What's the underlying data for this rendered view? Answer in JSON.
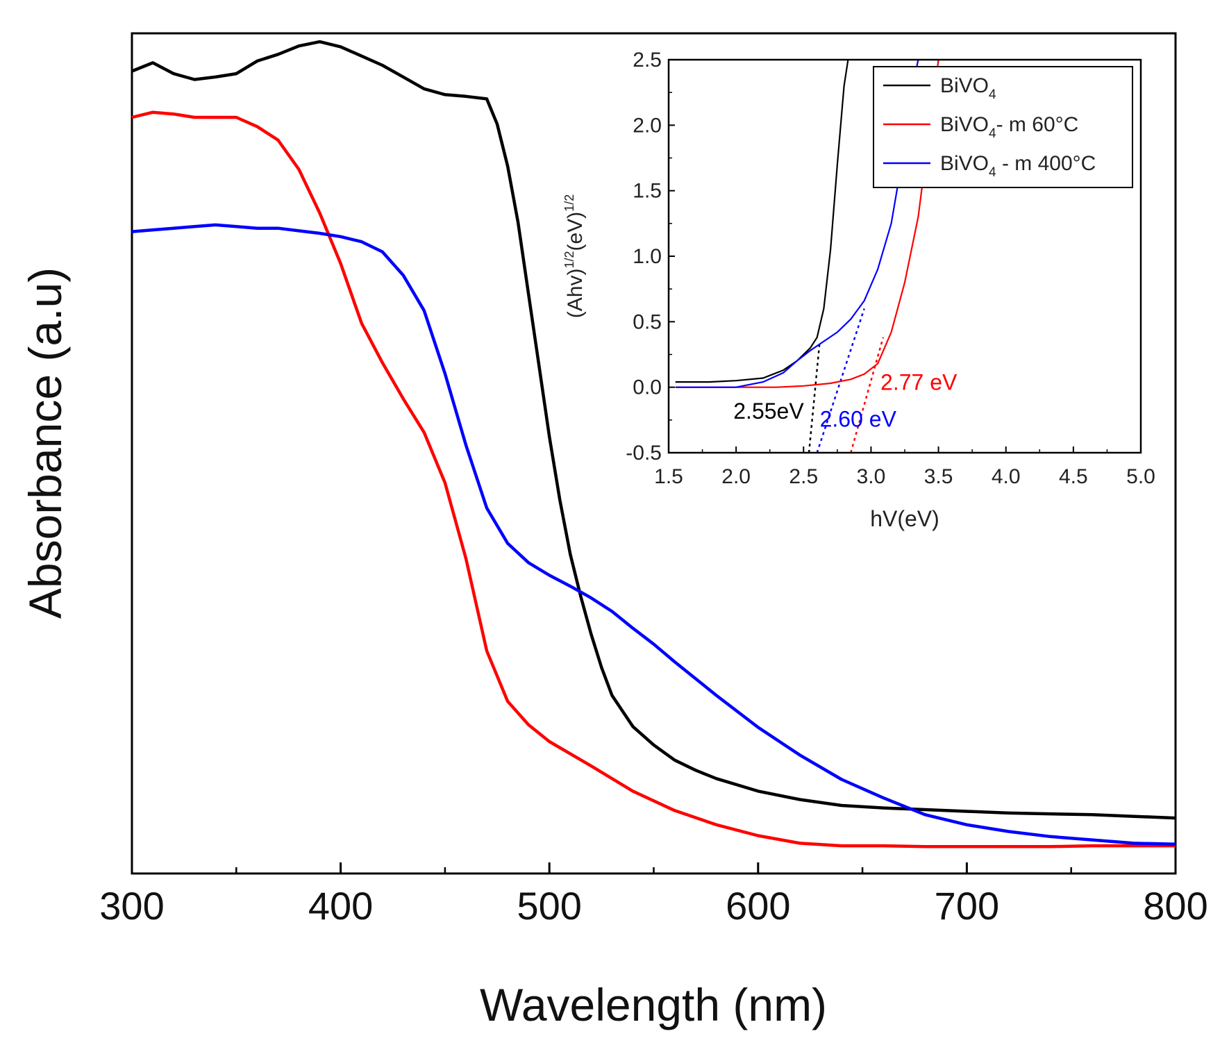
{
  "chart_data": [
    {
      "type": "line",
      "xlabel": "Wavelength (nm)",
      "ylabel": "Absorbance (a.u)",
      "xlim": [
        300,
        800
      ],
      "ylim": [
        0,
        1
      ],
      "xticks": [
        300,
        400,
        500,
        600,
        700,
        800
      ],
      "xtick_labels": [
        "300",
        "400",
        "500",
        "600",
        "700",
        "800"
      ],
      "series": [
        {
          "name": "BiVO4",
          "color": "#000000",
          "x": [
            300,
            310,
            320,
            330,
            340,
            350,
            360,
            370,
            380,
            390,
            400,
            410,
            420,
            430,
            440,
            450,
            460,
            470,
            475,
            480,
            485,
            490,
            495,
            500,
            505,
            510,
            515,
            520,
            525,
            530,
            540,
            550,
            560,
            570,
            580,
            600,
            620,
            640,
            660,
            680,
            700,
            720,
            740,
            760,
            780,
            800
          ],
          "y": [
            0.955,
            0.965,
            0.952,
            0.945,
            0.948,
            0.952,
            0.967,
            0.975,
            0.985,
            0.99,
            0.984,
            0.973,
            0.962,
            0.948,
            0.934,
            0.927,
            0.925,
            0.922,
            0.892,
            0.842,
            0.775,
            0.69,
            0.605,
            0.52,
            0.445,
            0.38,
            0.33,
            0.285,
            0.245,
            0.212,
            0.175,
            0.153,
            0.135,
            0.123,
            0.113,
            0.098,
            0.088,
            0.081,
            0.078,
            0.076,
            0.074,
            0.072,
            0.071,
            0.07,
            0.068,
            0.066
          ]
        },
        {
          "name": "BiVO4- m 60°C",
          "color": "#ff0000",
          "x": [
            300,
            310,
            320,
            330,
            340,
            350,
            360,
            370,
            380,
            390,
            400,
            410,
            420,
            430,
            440,
            450,
            460,
            470,
            480,
            490,
            500,
            520,
            540,
            560,
            580,
            600,
            620,
            640,
            660,
            680,
            700,
            720,
            740,
            760,
            780,
            800
          ],
          "y": [
            0.9,
            0.906,
            0.904,
            0.9,
            0.9,
            0.9,
            0.889,
            0.873,
            0.838,
            0.786,
            0.726,
            0.655,
            0.608,
            0.565,
            0.525,
            0.465,
            0.375,
            0.265,
            0.205,
            0.177,
            0.157,
            0.128,
            0.098,
            0.075,
            0.058,
            0.045,
            0.036,
            0.033,
            0.033,
            0.032,
            0.032,
            0.032,
            0.032,
            0.033,
            0.033,
            0.033
          ]
        },
        {
          "name": "BiVO4 - m 400°C",
          "color": "#0000ff",
          "x": [
            300,
            310,
            320,
            330,
            340,
            350,
            360,
            370,
            380,
            390,
            400,
            410,
            420,
            430,
            440,
            450,
            460,
            470,
            480,
            490,
            500,
            510,
            520,
            530,
            540,
            550,
            560,
            580,
            600,
            620,
            640,
            660,
            680,
            700,
            720,
            740,
            760,
            780,
            800
          ],
          "y": [
            0.764,
            0.766,
            0.768,
            0.77,
            0.772,
            0.77,
            0.768,
            0.768,
            0.765,
            0.762,
            0.758,
            0.752,
            0.74,
            0.712,
            0.67,
            0.595,
            0.51,
            0.435,
            0.393,
            0.37,
            0.355,
            0.342,
            0.328,
            0.312,
            0.292,
            0.273,
            0.252,
            0.212,
            0.174,
            0.141,
            0.112,
            0.09,
            0.07,
            0.058,
            0.05,
            0.044,
            0.04,
            0.036,
            0.035
          ]
        }
      ]
    },
    {
      "type": "line",
      "role": "inset",
      "xlabel": "hV(eV)",
      "ylabel": "(Ahv)1/2(eV)1/2",
      "ylabel_parts": {
        "p1": "(Ahv)",
        "sup1": "1/2",
        "p2": "(eV)",
        "sup2": "1/2"
      },
      "xlim": [
        1.5,
        5.0
      ],
      "ylim": [
        -0.5,
        2.5
      ],
      "xticks": [
        1.5,
        2.0,
        2.5,
        3.0,
        3.5,
        4.0,
        4.5,
        5.0
      ],
      "xtick_labels": [
        "1.5",
        "2.0",
        "2.5",
        "3.0",
        "3.5",
        "4.0",
        "4.5",
        "5.0"
      ],
      "yticks": [
        -0.5,
        0.0,
        0.5,
        1.0,
        1.5,
        2.0,
        2.5
      ],
      "ytick_labels": [
        "-0.5",
        "0.0",
        "0.5",
        "1.0",
        "1.5",
        "2.0",
        "2.5"
      ],
      "legend": [
        {
          "base": "BiVO",
          "sub": "4",
          "suffix": "",
          "color": "#000000"
        },
        {
          "base": "BiVO",
          "sub": "4",
          "suffix": "- m 60°C",
          "color": "#ff0000"
        },
        {
          "base": "BiVO",
          "sub": "4",
          "suffix": " - m 400°C",
          "color": "#0000ff"
        }
      ],
      "legend_position": "top-right",
      "series": [
        {
          "name": "BiVO4",
          "color": "#000000",
          "x": [
            1.55,
            1.8,
            2.0,
            2.2,
            2.35,
            2.45,
            2.55,
            2.6,
            2.65,
            2.7,
            2.75,
            2.8,
            2.83
          ],
          "y": [
            0.04,
            0.04,
            0.05,
            0.07,
            0.13,
            0.2,
            0.3,
            0.38,
            0.6,
            1.05,
            1.7,
            2.3,
            2.5
          ]
        },
        {
          "name": "BiVO4- m 60°C",
          "color": "#ff0000",
          "x": [
            1.55,
            1.8,
            2.0,
            2.3,
            2.5,
            2.7,
            2.85,
            2.95,
            3.05,
            3.15,
            3.25,
            3.35,
            3.4,
            3.45,
            3.5
          ],
          "y": [
            0.0,
            0.0,
            0.0,
            0.0,
            0.01,
            0.03,
            0.06,
            0.1,
            0.18,
            0.42,
            0.8,
            1.3,
            1.7,
            2.1,
            2.5
          ]
        },
        {
          "name": "BiVO4 - m 400°C",
          "color": "#0000ff",
          "x": [
            1.55,
            1.8,
            2.0,
            2.2,
            2.35,
            2.45,
            2.55,
            2.65,
            2.75,
            2.85,
            2.95,
            3.05,
            3.15,
            3.2,
            3.25,
            3.3,
            3.35
          ],
          "y": [
            0.0,
            0.0,
            0.0,
            0.04,
            0.11,
            0.2,
            0.28,
            0.35,
            0.42,
            0.52,
            0.66,
            0.9,
            1.25,
            1.55,
            1.9,
            2.25,
            2.5
          ]
        }
      ],
      "tangents": [
        {
          "series": "BiVO4",
          "color": "#000000",
          "x1": 2.54,
          "y1": -0.5,
          "x2": 2.62,
          "y2": 0.35
        },
        {
          "series": "BiVO4 - m 400°C",
          "color": "#0000ff",
          "x1": 2.6,
          "y1": -0.5,
          "x2": 2.95,
          "y2": 0.6
        },
        {
          "series": "BiVO4- m 60°C",
          "color": "#ff0000",
          "x1": 2.85,
          "y1": -0.5,
          "x2": 3.09,
          "y2": 0.38
        }
      ],
      "annotations": [
        {
          "text": "2.55eV",
          "color": "#000000",
          "x": 1.98,
          "y": -0.24
        },
        {
          "text": "2.60 eV",
          "color": "#0000ff",
          "x": 2.62,
          "y": -0.3
        },
        {
          "text": "2.77 eV",
          "color": "#ff0000",
          "x": 3.07,
          "y": -0.02
        }
      ]
    }
  ]
}
